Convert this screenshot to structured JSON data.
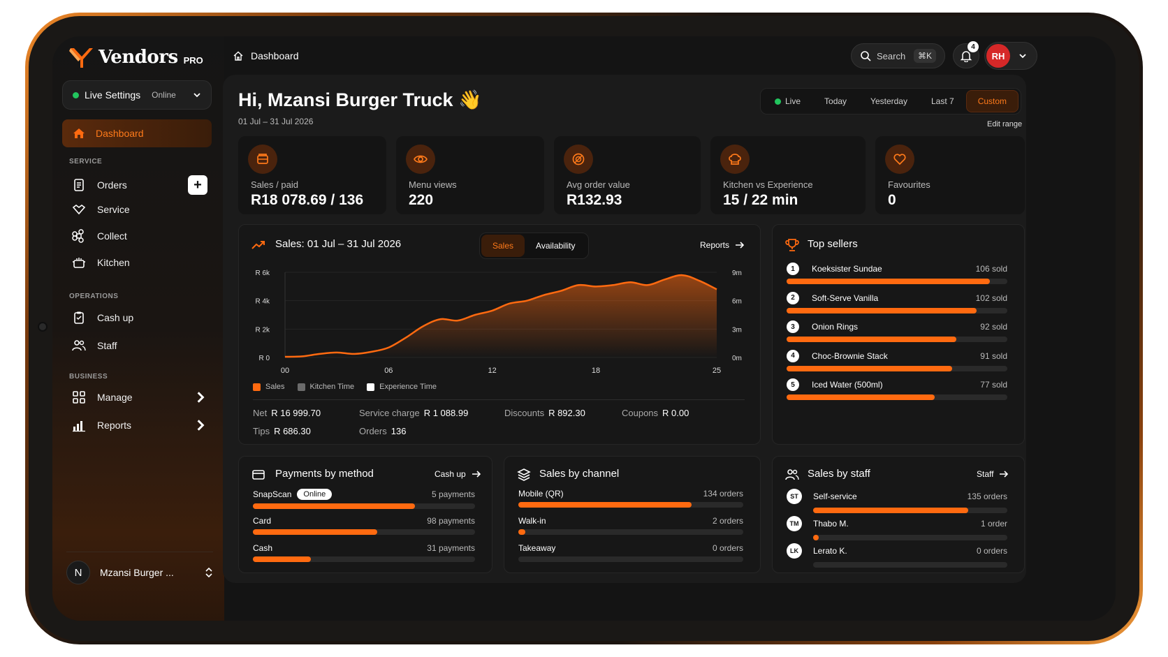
{
  "brand": {
    "name": "Vendors",
    "tier": "PRO"
  },
  "live_settings": {
    "label": "Live Settings",
    "status": "Online"
  },
  "nav": {
    "dashboard": "Dashboard",
    "service_section": "SERVICE",
    "service_items": [
      "Orders",
      "Service",
      "Collect",
      "Kitchen"
    ],
    "operations_section": "OPERATIONS",
    "operations_items": [
      "Cash up",
      "Staff"
    ],
    "business_section": "BUSINESS",
    "business_items": [
      "Manage",
      "Reports"
    ],
    "add_label": "+"
  },
  "profile": {
    "initial": "N",
    "name": "Mzansi Burger ..."
  },
  "topbar": {
    "breadcrumb": "Dashboard",
    "search_label": "Search",
    "search_shortcut": "⌘K",
    "notification_count": "4",
    "user_initials": "RH"
  },
  "header": {
    "greeting": "Hi, Mzansi Burger Truck 👋",
    "date_range": "01 Jul – 31 Jul 2026",
    "range_tabs": [
      "Live",
      "Today",
      "Yesterday",
      "Last 7",
      "Custom"
    ],
    "active_range": "Custom",
    "edit_range": "Edit range"
  },
  "stats": [
    {
      "label": "Sales / paid",
      "value": "R18 078.69 / 136",
      "icon": "wallet-icon"
    },
    {
      "label": "Menu views",
      "value": "220",
      "icon": "eye-icon"
    },
    {
      "label": "Avg order value",
      "value": "R132.93",
      "icon": "coin-icon"
    },
    {
      "label": "Kitchen vs Experience",
      "value": "15 / 22 min",
      "icon": "chef-hat-icon"
    },
    {
      "label": "Favourites",
      "value": "0",
      "icon": "heart-icon"
    }
  ],
  "sales_card": {
    "title": "Sales:  01 Jul – 31 Jul 2026",
    "toggle": [
      "Sales",
      "Availability"
    ],
    "link": "Reports",
    "summary": {
      "net_label": "Net",
      "net": "R 16 999.70",
      "service_label": "Service charge",
      "service": "R 1 088.99",
      "discounts_label": "Discounts",
      "discounts": "R 892.30",
      "coupons_label": "Coupons",
      "coupons": "R 0.00",
      "tips_label": "Tips",
      "tips": "R 686.30",
      "orders_label": "Orders",
      "orders": "136"
    }
  },
  "chart_data": {
    "type": "area",
    "x": [
      0,
      1,
      2,
      3,
      4,
      5,
      6,
      7,
      8,
      9,
      10,
      11,
      12,
      13,
      14,
      15,
      16,
      17,
      18,
      19,
      20,
      21,
      22,
      23,
      24,
      25
    ],
    "x_tick_labels": [
      "00",
      "06",
      "12",
      "18",
      "25"
    ],
    "x_ticks": [
      0,
      6,
      12,
      18,
      25
    ],
    "y_left_ticks": [
      "R 6k",
      "R 4k",
      "R 2k",
      "R 0"
    ],
    "y_right_ticks": [
      "9m",
      "6m",
      "3m",
      "0m"
    ],
    "ylim": [
      0,
      6000
    ],
    "series": [
      {
        "name": "Sales",
        "values": [
          50,
          80,
          250,
          350,
          250,
          400,
          700,
          1400,
          2200,
          2700,
          2600,
          3000,
          3300,
          3800,
          4000,
          4400,
          4700,
          5100,
          5000,
          5100,
          5300,
          5100,
          5500,
          5800,
          5400,
          4800
        ]
      }
    ],
    "legend": [
      "Sales",
      "Kitchen Time",
      "Experience Time"
    ],
    "legend_colors": [
      "#ff6a10",
      "#6b6b6b",
      "#ffffff"
    ]
  },
  "top_sellers": {
    "title": "Top sellers",
    "items": [
      {
        "rank": "1",
        "name": "Koeksister Sundae",
        "sold": "106 sold",
        "fraction": 0.92
      },
      {
        "rank": "2",
        "name": "Soft-Serve Vanilla",
        "sold": "102 sold",
        "fraction": 0.86
      },
      {
        "rank": "3",
        "name": "Onion Rings",
        "sold": "92 sold",
        "fraction": 0.77
      },
      {
        "rank": "4",
        "name": "Choc-Brownie Stack",
        "sold": "91 sold",
        "fraction": 0.75
      },
      {
        "rank": "5",
        "name": "Iced Water (500ml)",
        "sold": "77 sold",
        "fraction": 0.67
      }
    ]
  },
  "payments": {
    "title": "Payments by method",
    "link": "Cash up",
    "items": [
      {
        "name": "SnapScan",
        "badge": "Online",
        "count": "5 payments",
        "fraction": 0.73
      },
      {
        "name": "Card",
        "badge": "",
        "count": "98 payments",
        "fraction": 0.56
      },
      {
        "name": "Cash",
        "badge": "",
        "count": "31 payments",
        "fraction": 0.26
      }
    ]
  },
  "channels": {
    "title": "Sales by channel",
    "items": [
      {
        "name": "Mobile (QR)",
        "count": "134 orders",
        "fraction": 0.77
      },
      {
        "name": "Walk-in",
        "count": "2 orders",
        "fraction": 0.02
      },
      {
        "name": "Takeaway",
        "count": "0 orders",
        "fraction": 0
      }
    ]
  },
  "staff": {
    "title": "Sales by staff",
    "link": "Staff",
    "items": [
      {
        "initials": "ST",
        "name": "Self-service",
        "count": "135 orders",
        "fraction": 0.8
      },
      {
        "initials": "TM",
        "name": "Thabo M.",
        "count": "1 order",
        "fraction": 0.02
      },
      {
        "initials": "LK",
        "name": "Lerato K.",
        "count": "0 orders",
        "fraction": 0
      }
    ]
  },
  "colors": {
    "accent": "#ff6a10",
    "accent_dark": "#3a1d0a",
    "success": "#22c55e",
    "danger": "#d62828"
  }
}
